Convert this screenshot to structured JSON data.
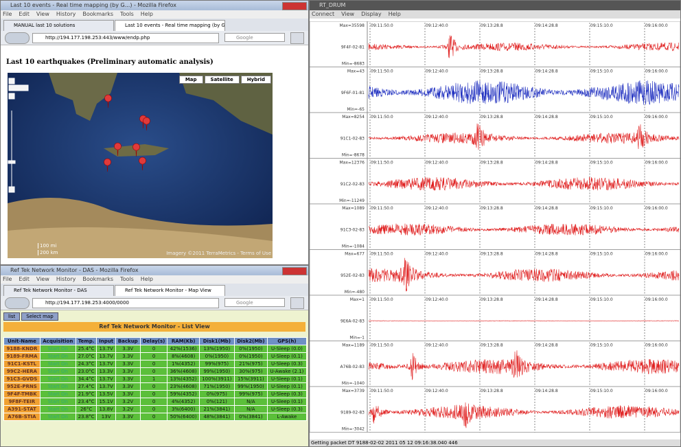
{
  "browser1": {
    "title": "Last 10 events - Real time mapping (by G...) - Mozilla Firefox",
    "menu": [
      "File",
      "Edit",
      "View",
      "History",
      "Bookmarks",
      "Tools",
      "Help"
    ],
    "tabs": [
      "MANUAL last 10 solutions",
      "Last 10 events - Real time mapping (by G..."
    ],
    "url": "http://194.177.198.253:443/www/endp.php",
    "search": "Google",
    "heading": "Last 10 earthquakes (Preliminary automatic analysis)",
    "map_buttons": [
      "Map",
      "Satellite",
      "Hybrid"
    ],
    "scale": [
      "100 mi",
      "200 km"
    ],
    "attribution": "Imagery ©2011 TerraMetrics - Terms of Use"
  },
  "browser2": {
    "title": "Ref Tek Network Monitor - DAS - Mozilla Firefox",
    "menu": [
      "File",
      "Edit",
      "View",
      "History",
      "Bookmarks",
      "Tools",
      "Help"
    ],
    "tabs": [
      "Ref Tek Network Monitor - DAS",
      "Ref Tek Network Monitor - Map View"
    ],
    "url": "http://194.177.198.253:4000/0000",
    "search": "Google",
    "buttons": [
      "list",
      "Select map"
    ],
    "panel_title": "Ref Tek Network Monitor - List View",
    "table": {
      "columns": [
        "Unit-Name",
        "Acquisition",
        "Temp.",
        "Input",
        "Backup",
        "Delay(s)",
        "RAM(Kb)",
        "Disk1(Mb)",
        "Disk2(Mb)",
        "GPS(h)"
      ],
      "rows": [
        [
          "9188-KNDR",
          "Start On",
          "25.4°C",
          "13.7V",
          "3.3V",
          "0",
          "42%(1536)",
          "13%(1950)",
          "0%(1950)",
          "U-Sleep (0.0)"
        ],
        [
          "9189-FRMA",
          "Start On",
          "27.0°C",
          "13.7V",
          "3.3V",
          "0",
          "8%(4608)",
          "0%(1950)",
          "0%(1950)",
          "U-Sleep (0.1)"
        ],
        [
          "91C1-KSTL",
          "Start On",
          "24.3°C",
          "13.7V",
          "3.3V",
          "0",
          "1%(4352)",
          "99%(975)",
          "21%(975)",
          "U-Sleep (0.3)"
        ],
        [
          "99C2-HERA",
          "Start On",
          "23.0°C",
          "13.3V",
          "3.3V",
          "0",
          "36%(4608)",
          "99%(1950)",
          "30%(975)",
          "U-Awake (2.1)"
        ],
        [
          "91C3-GVDS",
          "Start On",
          "34.4°C",
          "13.7V",
          "3.3V",
          "1",
          "13%(4352)",
          "100%(3911)",
          "15%(3911)",
          "U-Sleep (0.1)"
        ],
        [
          "952E-PRNS",
          "Start On",
          "27.4°C",
          "13.7V",
          "3.3V",
          "0",
          "23%(4608)",
          "71%(1950)",
          "99%(1950)",
          "U-Sleep (0.1)"
        ],
        [
          "9F4F-TMBK",
          "Start On",
          "21.9°C",
          "13.5V",
          "3.3V",
          "0",
          "59%(4352)",
          "0%(975)",
          "99%(975)",
          "U-Sleep (0.3)"
        ],
        [
          "9F8F-TEIR",
          "Start On",
          "23.4°C",
          "15.1V",
          "3.2V",
          "0",
          "4%(4352)",
          "0%(121)",
          "N/A",
          "U-Sleep (0.1)"
        ],
        [
          "A391-STAT",
          "Start On",
          "26°C",
          "13.8V",
          "3.2V",
          "0",
          "3%(6400)",
          "21%(3841)",
          "N/A",
          "U-Sleep (0.3)"
        ],
        [
          "A76B-STIA",
          "Start On",
          "23.8°C",
          "13V",
          "3.3V",
          "0",
          "50%(6400)",
          "48%(3841)",
          "0%(3841)",
          "L-Awake"
        ]
      ]
    }
  },
  "seismo": {
    "title": "RT_DRUM",
    "menu": [
      "Connect",
      "View",
      "Display",
      "Help"
    ],
    "times": [
      "09:11:50.0",
      "09:12:40.0",
      "09:13:28.8",
      "09:14:28.8",
      "09:15:10.0",
      "09:16:00.0"
    ],
    "channels": [
      {
        "name": "9F4F-02-81",
        "max": "Max=35598",
        "min": "Min=-8683",
        "color": "#e02020"
      },
      {
        "name": "9F6F-01-81",
        "max": "Max=43",
        "min": "Min=-65",
        "color": "#2030c0"
      },
      {
        "name": "91C1-02-83",
        "max": "Max=8254",
        "min": "Min=-8678",
        "color": "#e02020"
      },
      {
        "name": "91C2-02-83",
        "max": "Max=12376",
        "min": "Min=-11249",
        "color": "#e02020"
      },
      {
        "name": "91C3-02-83",
        "max": "Max=1089",
        "min": "Min=-1084",
        "color": "#e02020"
      },
      {
        "name": "952E-02-83",
        "max": "Max=677",
        "min": "Min=-480",
        "color": "#e02020"
      },
      {
        "name": "9E6A-02-83",
        "max": "Max=1",
        "min": "Min=-1",
        "color": "#e02020"
      },
      {
        "name": "A76B-02-83",
        "max": "Max=1189",
        "min": "Min=-1040",
        "color": "#e02020"
      },
      {
        "name": "9189-02-83",
        "max": "Max=3739",
        "min": "Min=-3042",
        "color": "#e02020"
      }
    ],
    "status": "Getting packet DT 9188-02-02 2011 05 12 09:16:38.040 446"
  }
}
